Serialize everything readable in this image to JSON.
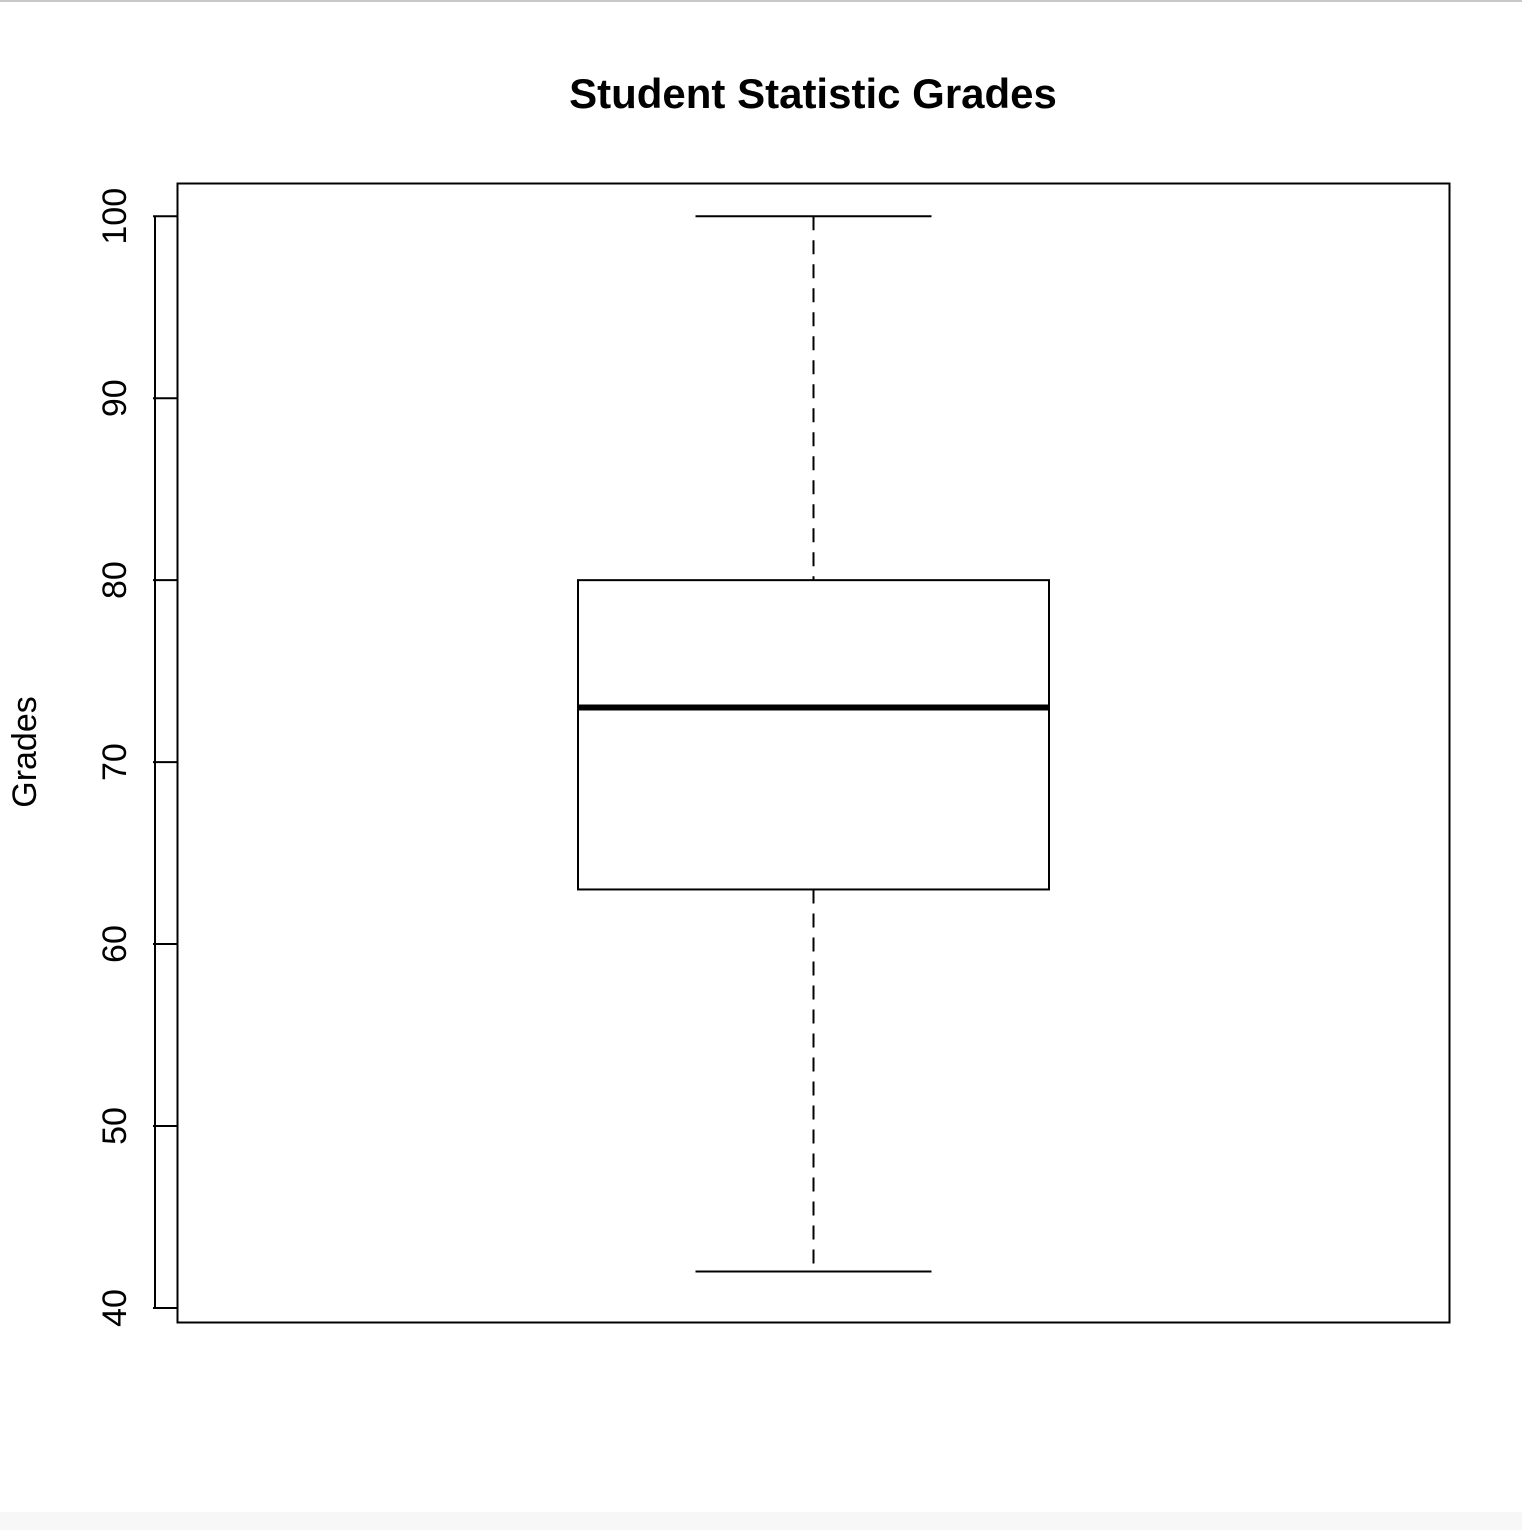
{
  "chart_data": {
    "type": "box",
    "title": "Student Statistic Grades",
    "xlabel": "",
    "ylabel": "Grades",
    "ylim": [
      39.2,
      101.8
    ],
    "yticks": [
      40,
      50,
      60,
      70,
      80,
      90,
      100
    ],
    "ytick_labels": [
      "40",
      "50",
      "60",
      "70",
      "80",
      "90",
      "100"
    ],
    "grid": false,
    "legend": "none",
    "boxes": [
      {
        "whisker_low": 42,
        "q1": 63,
        "median": 73,
        "q3": 80,
        "whisker_high": 100
      }
    ],
    "colors": {
      "stroke": "#000000",
      "fill": "#ffffff"
    }
  }
}
